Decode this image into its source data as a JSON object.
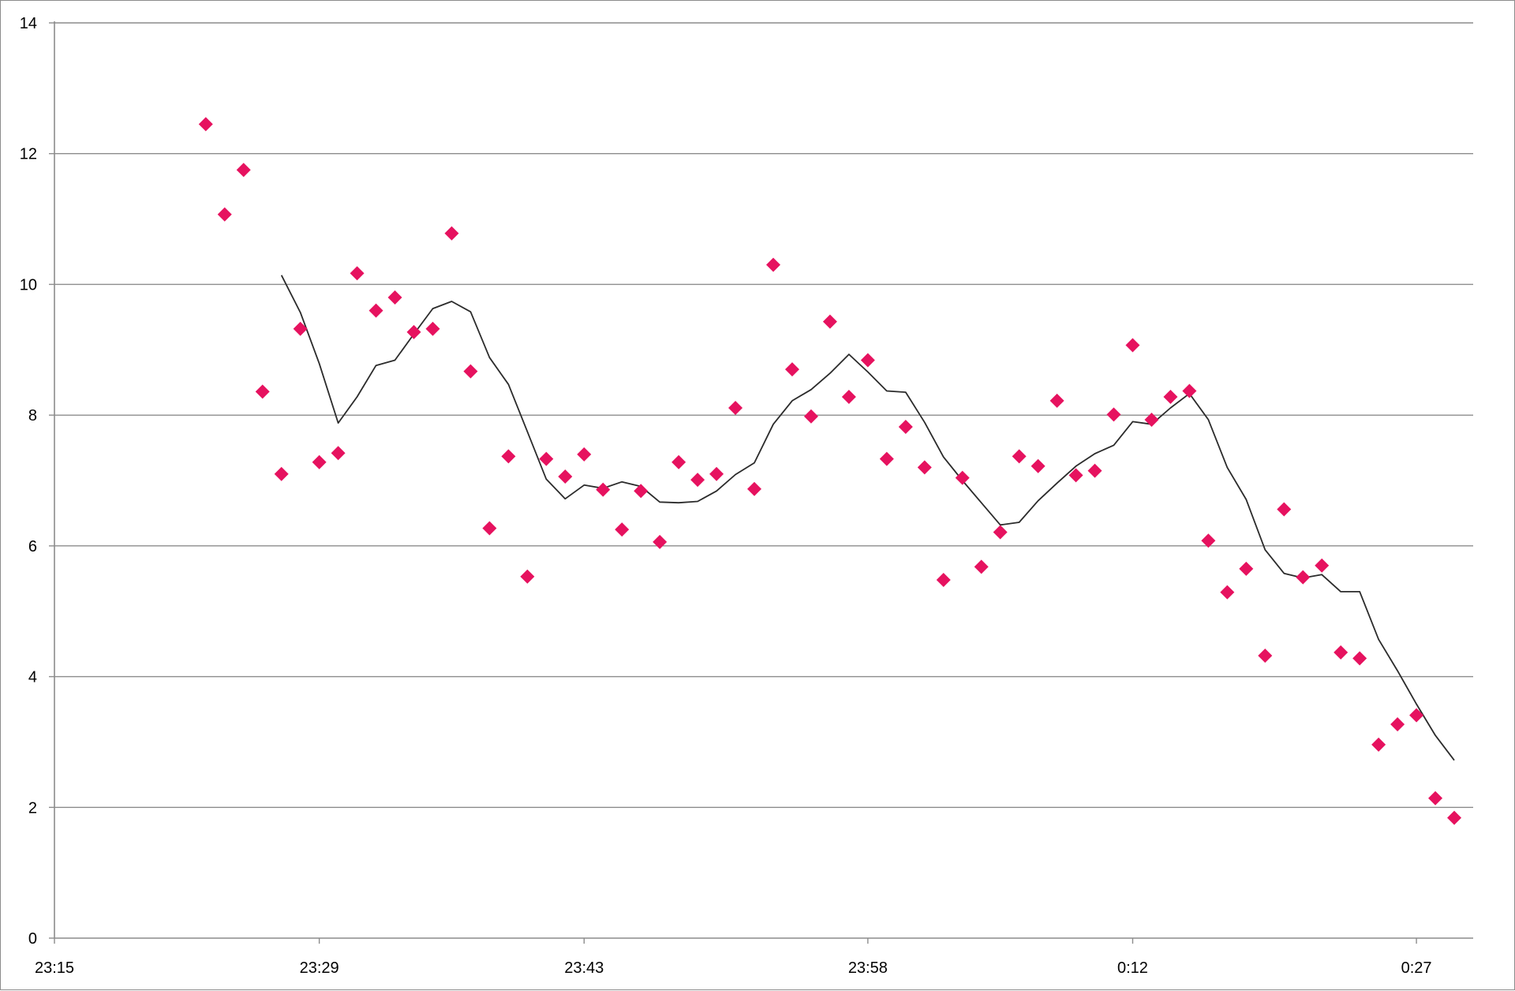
{
  "chart_data": {
    "type": "scatter",
    "title": "",
    "xlabel": "",
    "ylabel": "",
    "grid": true,
    "legend": "none",
    "xlim": [
      "23:15",
      "0:30"
    ],
    "ylim": [
      0,
      14
    ],
    "x_tick_labels": [
      "23:15",
      "23:29",
      "23:43",
      "23:58",
      "0:12",
      "0:27"
    ],
    "y_tick_labels": [
      "0",
      "2",
      "4",
      "6",
      "8",
      "10",
      "12",
      "14"
    ],
    "colors": {
      "markers": "#e6125f",
      "trend_line": "#2b2b2b",
      "gridlines": "#8c8c8c",
      "axis": "#8c8c8c"
    },
    "series": [
      {
        "kind": "points",
        "marker": "diamond",
        "x": [
          "23:23",
          "23:24",
          "23:25",
          "23:26",
          "23:27",
          "23:28",
          "23:29",
          "23:30",
          "23:31",
          "23:32",
          "23:33",
          "23:34",
          "23:35",
          "23:36",
          "23:37",
          "23:38",
          "23:39",
          "23:40",
          "23:41",
          "23:42",
          "23:43",
          "23:44",
          "23:45",
          "23:46",
          "23:47",
          "23:48",
          "23:49",
          "23:50",
          "23:51",
          "23:52",
          "23:53",
          "23:54",
          "23:55",
          "23:56",
          "23:57",
          "23:58",
          "23:59",
          "0:00",
          "0:01",
          "0:02",
          "0:03",
          "0:04",
          "0:05",
          "0:06",
          "0:07",
          "0:08",
          "0:09",
          "0:10",
          "0:11",
          "0:12",
          "0:13",
          "0:14",
          "0:15",
          "0:16",
          "0:17",
          "0:18",
          "0:19",
          "0:20",
          "0:21",
          "0:22",
          "0:23",
          "0:24",
          "0:25",
          "0:26",
          "0:27",
          "0:28",
          "0:29"
        ],
        "y": [
          12.45,
          11.07,
          11.75,
          8.36,
          7.1,
          9.32,
          7.28,
          7.42,
          10.17,
          9.6,
          9.8,
          9.27,
          9.32,
          10.78,
          8.67,
          6.27,
          7.37,
          5.53,
          7.33,
          7.06,
          7.4,
          6.86,
          6.25,
          6.84,
          6.06,
          7.28,
          7.01,
          7.1,
          8.11,
          6.87,
          10.3,
          8.7,
          7.98,
          9.43,
          8.28,
          8.84,
          7.33,
          7.82,
          7.2,
          5.48,
          7.04,
          5.68,
          6.21,
          7.37,
          7.22,
          8.22,
          7.08,
          7.15,
          8.01,
          9.07,
          7.93,
          8.28,
          8.37,
          6.08,
          5.29,
          5.65,
          4.32,
          6.56,
          5.52,
          5.7,
          4.37,
          4.28,
          2.96,
          3.27,
          3.41,
          2.14,
          1.84
        ]
      },
      {
        "kind": "line",
        "x": [
          "23:27",
          "23:28",
          "23:29",
          "23:30",
          "23:31",
          "23:32",
          "23:33",
          "23:34",
          "23:35",
          "23:36",
          "23:37",
          "23:38",
          "23:39",
          "23:40",
          "23:41",
          "23:42",
          "23:43",
          "23:44",
          "23:45",
          "23:46",
          "23:47",
          "23:48",
          "23:49",
          "23:50",
          "23:51",
          "23:52",
          "23:53",
          "23:54",
          "23:55",
          "23:56",
          "23:57",
          "23:58",
          "23:59",
          "0:00",
          "0:01",
          "0:02",
          "0:03",
          "0:04",
          "0:05",
          "0:06",
          "0:07",
          "0:08",
          "0:09",
          "0:10",
          "0:11",
          "0:12",
          "0:13",
          "0:14",
          "0:15",
          "0:16",
          "0:17",
          "0:18",
          "0:19",
          "0:20",
          "0:21",
          "0:22",
          "0:23",
          "0:24",
          "0:25",
          "0:26",
          "0:27",
          "0:28",
          "0:29"
        ],
        "y": [
          10.14,
          9.57,
          8.79,
          7.88,
          8.28,
          8.76,
          8.84,
          9.24,
          9.63,
          9.74,
          9.58,
          8.88,
          8.47,
          7.75,
          7.02,
          6.72,
          6.93,
          6.88,
          6.98,
          6.91,
          6.67,
          6.66,
          6.68,
          6.84,
          7.09,
          7.27,
          7.86,
          8.22,
          8.39,
          8.64,
          8.93,
          8.66,
          8.37,
          8.35,
          7.89,
          7.36,
          7.0,
          6.66,
          6.32,
          6.36,
          6.69,
          6.96,
          7.22,
          7.41,
          7.54,
          7.9,
          7.86,
          8.11,
          8.33,
          7.93,
          7.2,
          6.71,
          5.94,
          5.58,
          5.51,
          5.56,
          5.3,
          5.3,
          4.57,
          4.09,
          3.58,
          3.1,
          2.72
        ]
      }
    ]
  }
}
